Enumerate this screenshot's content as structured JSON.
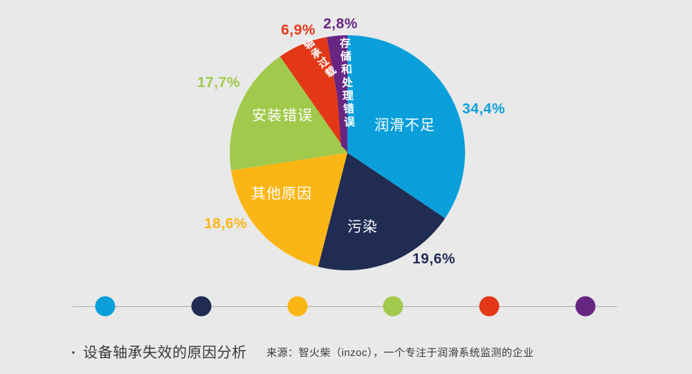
{
  "background": "#E9E9E9",
  "chart_data": {
    "type": "pie",
    "title": "设备轴承失效的原因分析",
    "unit": "%",
    "direction": "clockwise",
    "start_angle_deg": 0,
    "legend_position": "bottom",
    "slices": [
      {
        "label": "润滑不足",
        "value": 34.4,
        "display": "34,4%",
        "color": "#0A9FDB"
      },
      {
        "label": "污染",
        "value": 19.6,
        "display": "19,6%",
        "color": "#212C53"
      },
      {
        "label": "其他原因",
        "value": 18.6,
        "display": "18,6%",
        "color": "#FBB615"
      },
      {
        "label": "安装错误",
        "value": 17.7,
        "display": "17,7%",
        "color": "#A1C94B"
      },
      {
        "label": "轴承过载",
        "value": 6.9,
        "display": "6,9%",
        "color": "#E23817"
      },
      {
        "label": "存储和处理错误",
        "value": 2.8,
        "display": "2,8%",
        "color": "#682683"
      }
    ]
  },
  "caption": {
    "bullet": "·",
    "title": "设备轴承失效的原因分析",
    "source": "来源：智火柴（inzoc），一个专注于润滑系统监测的企业"
  }
}
